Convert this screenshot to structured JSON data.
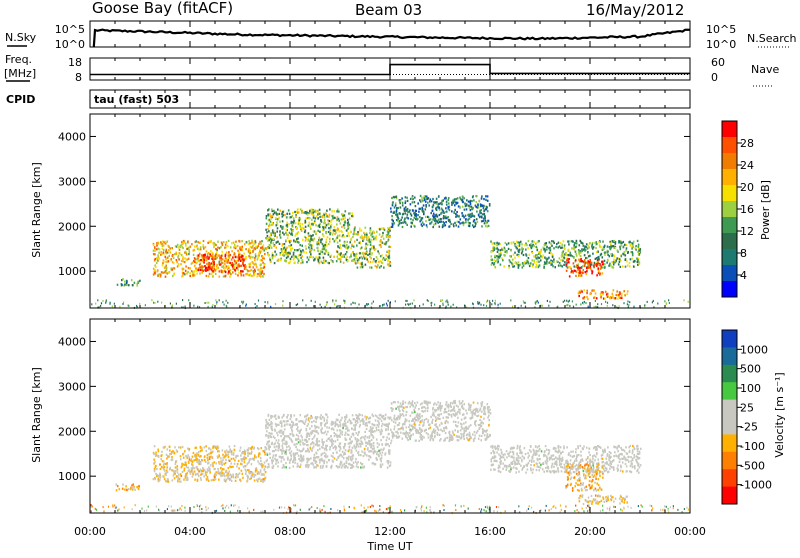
{
  "header": {
    "station": "Goose Bay (fitACF)",
    "beam": "Beam 03",
    "date": "16/May/2012"
  },
  "top_labels": {
    "nsky": "N.Sky",
    "nsky_ticks": [
      "10^5",
      "10^0"
    ],
    "nsearch": "N.Search",
    "nsearch_ticks": [
      "10^5",
      "10^0"
    ],
    "freq_line1": "Freq.",
    "freq_line2": "[MHz]",
    "freq_ticks": [
      "18",
      "8"
    ],
    "nave": "Nave",
    "nave_ticks": [
      "60",
      "0"
    ],
    "cpid": "CPID",
    "cpid_value": "tau (fast) 503"
  },
  "power_colorbar": {
    "title": "Power [dB]",
    "ticks": [
      "28",
      "24",
      "20",
      "16",
      "12",
      "8",
      "4"
    ],
    "colors": [
      "#ff0000",
      "#ff5000",
      "#f07c00",
      "#ffb000",
      "#f5e000",
      "#9cd040",
      "#3e9a52",
      "#2c6e4c",
      "#1c7a70",
      "#0a4fb8",
      "#0000ff"
    ]
  },
  "velocity_colorbar": {
    "title": "Velocity [m s⁻¹]",
    "ticks": [
      "1000",
      "500",
      "100",
      "25",
      "-25",
      "-100",
      "-500",
      "-1000"
    ],
    "colors": [
      "#1040c0",
      "#1a6a9a",
      "#2c8c50",
      "#46c840",
      "#c8c8c0",
      "#c8c8c0",
      "#ffb000",
      "#ff8000",
      "#ff4000",
      "#ff0000"
    ]
  },
  "chart_data": {
    "type": "heatmap",
    "title": "Goose Bay (fitACF) Beam 03 16/May/2012",
    "xlabel": "Time UT",
    "x_ticks": [
      "00:00",
      "04:00",
      "08:00",
      "12:00",
      "16:00",
      "20:00",
      "00:00"
    ],
    "xlim_hours": [
      0,
      24
    ],
    "panels": [
      {
        "name": "power",
        "ylabel": "Slant Range [km]",
        "y_ticks": [
          1000,
          2000,
          3000,
          4000
        ],
        "ylim": [
          180,
          4500
        ],
        "colorbar_label": "Power [dB]",
        "colorbar_range": [
          0,
          30
        ],
        "echo_regions": [
          {
            "t_start": 1.0,
            "t_end": 2.0,
            "r_min": 700,
            "r_max": 850,
            "value": 10
          },
          {
            "t_start": 2.5,
            "t_end": 7.0,
            "r_min": 900,
            "r_max": 1700,
            "value": 20
          },
          {
            "t_start": 4.2,
            "t_end": 6.2,
            "r_min": 1000,
            "r_max": 1400,
            "value": 28
          },
          {
            "t_start": 7.0,
            "t_end": 10.5,
            "r_min": 1200,
            "r_max": 2400,
            "value": 14
          },
          {
            "t_start": 10.5,
            "t_end": 12.0,
            "r_min": 1100,
            "r_max": 2000,
            "value": 16
          },
          {
            "t_start": 12.0,
            "t_end": 16.0,
            "r_min": 2000,
            "r_max": 2700,
            "value": 8
          },
          {
            "t_start": 16.0,
            "t_end": 22.0,
            "r_min": 1100,
            "r_max": 1700,
            "value": 12
          },
          {
            "t_start": 19.0,
            "t_end": 20.5,
            "r_min": 900,
            "r_max": 1300,
            "value": 28
          },
          {
            "t_start": 19.5,
            "t_end": 21.5,
            "r_min": 400,
            "r_max": 600,
            "value": 24
          }
        ]
      },
      {
        "name": "velocity",
        "ylabel": "Slant Range [km]",
        "y_ticks": [
          1000,
          2000,
          3000,
          4000
        ],
        "ylim": [
          180,
          4500
        ],
        "colorbar_label": "Velocity [m s⁻¹]",
        "colorbar_range": [
          -1000,
          1000
        ],
        "echo_regions": [
          {
            "t_start": 1.0,
            "t_end": 2.0,
            "r_min": 700,
            "r_max": 850,
            "value": -300
          },
          {
            "t_start": 2.5,
            "t_end": 7.0,
            "r_min": 900,
            "r_max": 1700,
            "value": -200
          },
          {
            "t_start": 7.0,
            "t_end": 12.0,
            "r_min": 1200,
            "r_max": 2400,
            "value": 0
          },
          {
            "t_start": 12.0,
            "t_end": 16.0,
            "r_min": 1800,
            "r_max": 2700,
            "value": 0
          },
          {
            "t_start": 16.0,
            "t_end": 22.0,
            "r_min": 1100,
            "r_max": 1700,
            "value": 0
          },
          {
            "t_start": 19.0,
            "t_end": 20.5,
            "r_min": 700,
            "r_max": 1300,
            "value": -300
          },
          {
            "t_start": 19.5,
            "t_end": 21.5,
            "r_min": 400,
            "r_max": 600,
            "value": -200
          }
        ]
      }
    ],
    "frequency_mhz": [
      {
        "t": 0,
        "v": 10.5
      },
      {
        "t": 12.0,
        "v": 10.5
      },
      {
        "t": 12.0,
        "v": 15.0
      },
      {
        "t": 16.0,
        "v": 15.0
      },
      {
        "t": 16.0,
        "v": 11.0
      },
      {
        "t": 24,
        "v": 11.0
      }
    ],
    "nsky_log10": [
      {
        "t": 0.15,
        "v": 0
      },
      {
        "t": 0.2,
        "v": 3.2
      },
      {
        "t": 2,
        "v": 3.0
      },
      {
        "t": 6,
        "v": 2.4
      },
      {
        "t": 10,
        "v": 2.1
      },
      {
        "t": 14,
        "v": 1.8
      },
      {
        "t": 18,
        "v": 1.6
      },
      {
        "t": 22,
        "v": 2.0
      },
      {
        "t": 24,
        "v": 3.3
      }
    ]
  }
}
